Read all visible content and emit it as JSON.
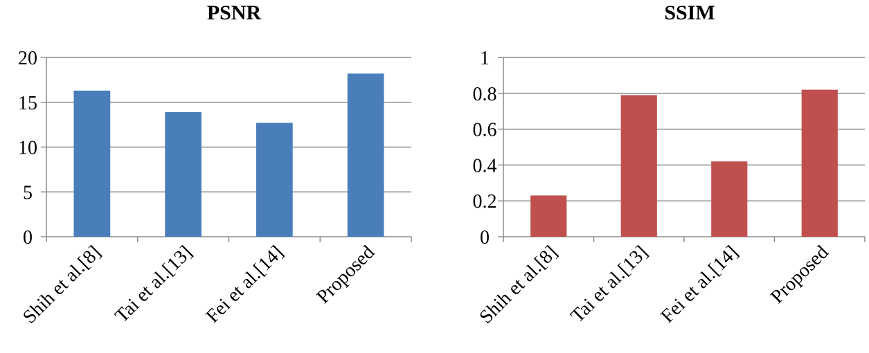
{
  "chart_data": [
    {
      "type": "bar",
      "title": "PSNR",
      "categories": [
        "Shih et al.[8]",
        "Tai et al.[13]",
        "Fei et al.[14]",
        "Proposed"
      ],
      "values": [
        16.3,
        13.9,
        12.7,
        18.2
      ],
      "yticks": [
        "0",
        "5",
        "10",
        "15",
        "20"
      ],
      "ylim": [
        0,
        20
      ],
      "xlabel": "",
      "ylabel": "",
      "color": "#4a7ebb",
      "grid": true
    },
    {
      "type": "bar",
      "title": "SSIM",
      "categories": [
        "Shih et al.[8]",
        "Tai et al.[13]",
        "Fei et al.[14]",
        "Proposed"
      ],
      "values": [
        0.23,
        0.79,
        0.42,
        0.82
      ],
      "yticks": [
        "0",
        "0.2",
        "0.4",
        "0.6",
        "0.8",
        "1"
      ],
      "ylim": [
        0,
        1
      ],
      "xlabel": "",
      "ylabel": "",
      "color": "#c0504d",
      "grid": true
    }
  ]
}
